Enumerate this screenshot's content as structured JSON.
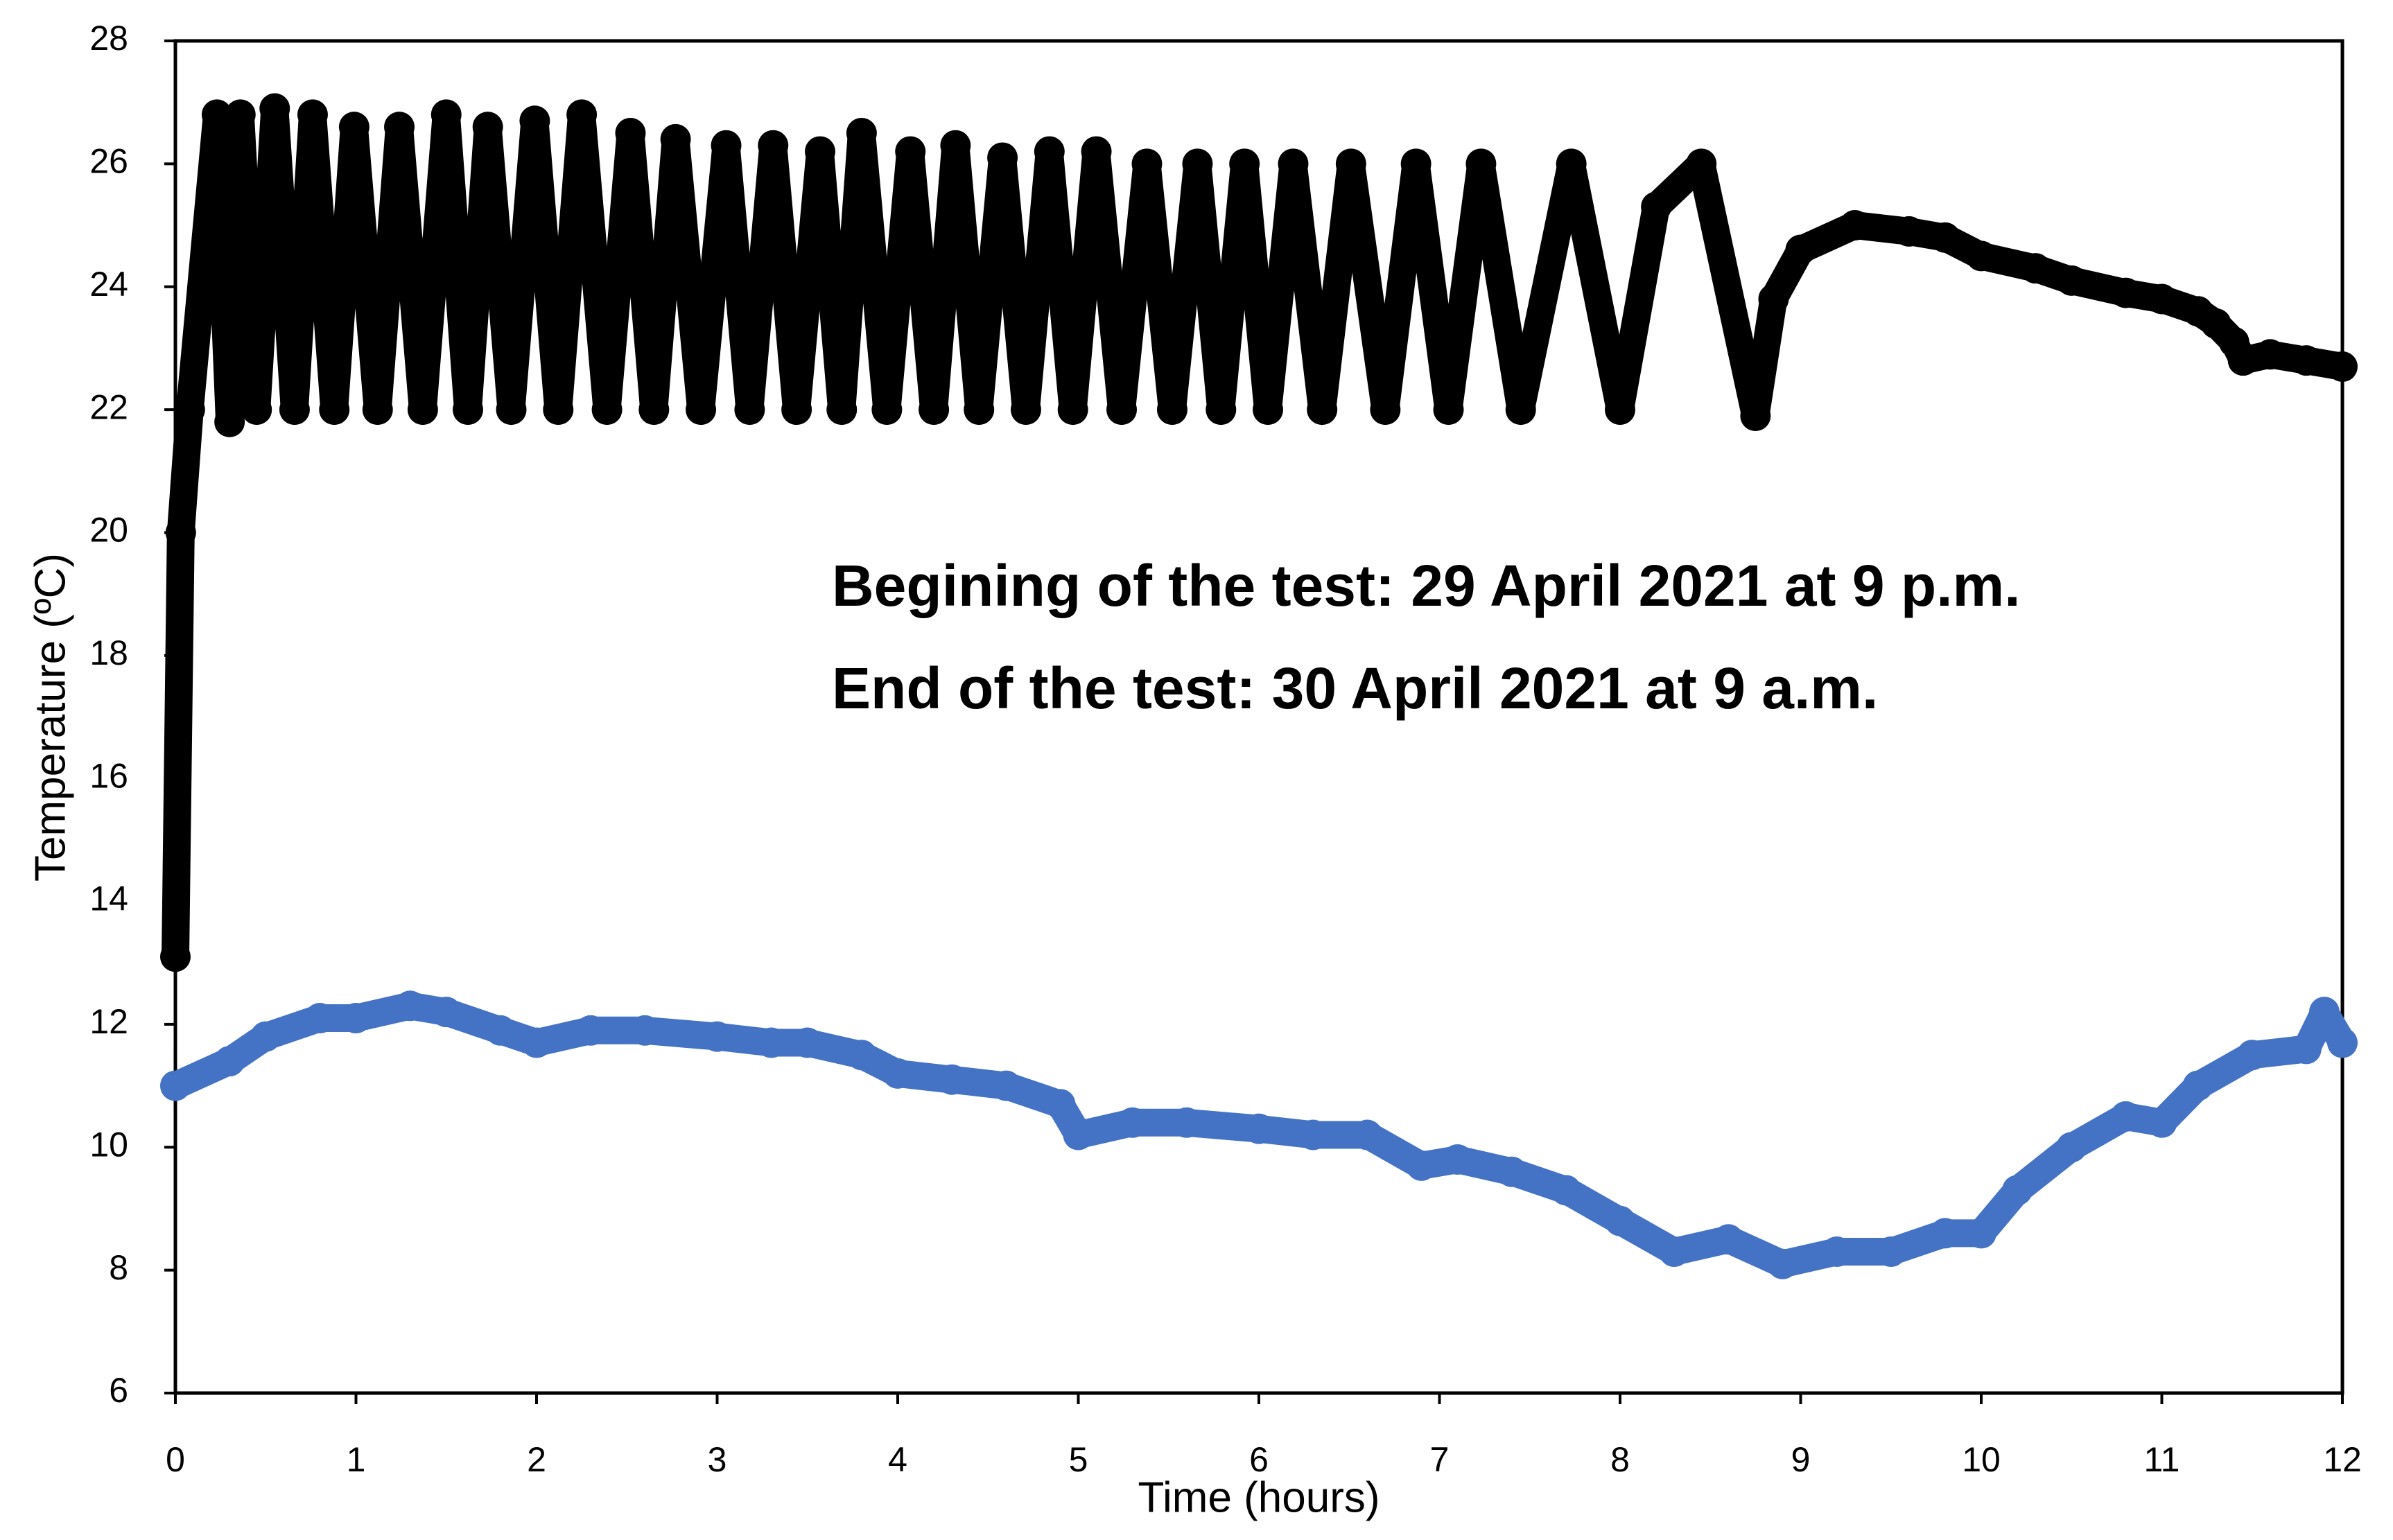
{
  "chart_data": {
    "type": "scatter",
    "xlabel": "Time (hours)",
    "ylabel": "Temperature (ºC)",
    "annotations": [
      "Begining of the test: 29 April 2021 at 9 p.m.",
      "End of the test: 30 April 2021 at 9 a.m."
    ],
    "xlim": [
      0,
      12
    ],
    "xticks": [
      0,
      1,
      2,
      3,
      4,
      5,
      6,
      7,
      8,
      9,
      10,
      11,
      12
    ],
    "ylim": [
      6,
      28
    ],
    "yticks": [
      6,
      8,
      10,
      12,
      14,
      16,
      18,
      20,
      22,
      24,
      26,
      28
    ],
    "grid": false,
    "series": [
      {
        "color": "#000000",
        "x": [
          0,
          0.03,
          0.08,
          0.23,
          0.3,
          0.36,
          0.45,
          0.55,
          0.66,
          0.76,
          0.88,
          0.99,
          1.12,
          1.24,
          1.37,
          1.5,
          1.62,
          1.73,
          1.86,
          1.99,
          2.12,
          2.25,
          2.39,
          2.52,
          2.65,
          2.77,
          2.91,
          3.05,
          3.18,
          3.31,
          3.44,
          3.57,
          3.69,
          3.8,
          3.94,
          4.07,
          4.2,
          4.32,
          4.45,
          4.58,
          4.71,
          4.84,
          4.97,
          5.1,
          5.24,
          5.38,
          5.52,
          5.66,
          5.79,
          5.92,
          6.05,
          6.19,
          6.35,
          6.51,
          6.7,
          6.87,
          7.05,
          7.23,
          7.45,
          7.73,
          8.0,
          8.2,
          8.45,
          8.75,
          8.85,
          9.0,
          9.3,
          9.6,
          9.8,
          10.0,
          10.3,
          10.5,
          10.8,
          11.0,
          11.2,
          11.3,
          11.4,
          11.45,
          11.6,
          11.8,
          12.0
        ],
        "values": [
          13.1,
          20.0,
          22.0,
          26.8,
          21.8,
          26.8,
          22.0,
          26.9,
          22.0,
          26.8,
          22.0,
          26.6,
          22.0,
          26.6,
          22.0,
          26.8,
          22.0,
          26.6,
          22.0,
          26.7,
          22.0,
          26.8,
          22.0,
          26.5,
          22.0,
          26.4,
          22.0,
          26.3,
          22.0,
          26.3,
          22.0,
          26.2,
          22.0,
          26.5,
          22.0,
          26.2,
          22.0,
          26.3,
          22.0,
          26.1,
          22.0,
          26.2,
          22.0,
          26.2,
          22.0,
          26.0,
          22.0,
          26.0,
          22.0,
          26.0,
          22.0,
          26.0,
          22.0,
          26.0,
          22.0,
          26.0,
          22.0,
          26.0,
          22.0,
          26.0,
          22.0,
          25.3,
          26.0,
          21.9,
          23.8,
          24.6,
          25.0,
          24.9,
          24.8,
          24.5,
          24.3,
          24.1,
          23.9,
          23.8,
          23.6,
          23.4,
          23.1,
          22.8,
          22.9,
          22.8,
          22.7
        ]
      },
      {
        "color": "#4472c4",
        "x": [
          0,
          0.3,
          0.5,
          0.8,
          1.0,
          1.3,
          1.5,
          1.8,
          2.0,
          2.3,
          2.6,
          3.0,
          3.3,
          3.5,
          3.8,
          4.0,
          4.3,
          4.6,
          4.9,
          5.0,
          5.3,
          5.6,
          6.0,
          6.3,
          6.6,
          6.9,
          7.1,
          7.4,
          7.7,
          8.0,
          8.3,
          8.6,
          8.9,
          9.2,
          9.5,
          9.8,
          10.0,
          10.2,
          10.5,
          10.8,
          11.0,
          11.2,
          11.5,
          11.8,
          11.9,
          12.0
        ],
        "values": [
          11.0,
          11.4,
          11.8,
          12.1,
          12.1,
          12.3,
          12.2,
          11.9,
          11.7,
          11.9,
          11.9,
          11.8,
          11.7,
          11.7,
          11.5,
          11.2,
          11.1,
          11.0,
          10.7,
          10.2,
          10.4,
          10.4,
          10.3,
          10.2,
          10.2,
          9.7,
          9.8,
          9.6,
          9.3,
          8.8,
          8.3,
          8.5,
          8.1,
          8.3,
          8.3,
          8.6,
          8.6,
          9.3,
          10.0,
          10.5,
          10.4,
          11.0,
          11.5,
          11.6,
          12.2,
          11.7
        ]
      }
    ]
  }
}
